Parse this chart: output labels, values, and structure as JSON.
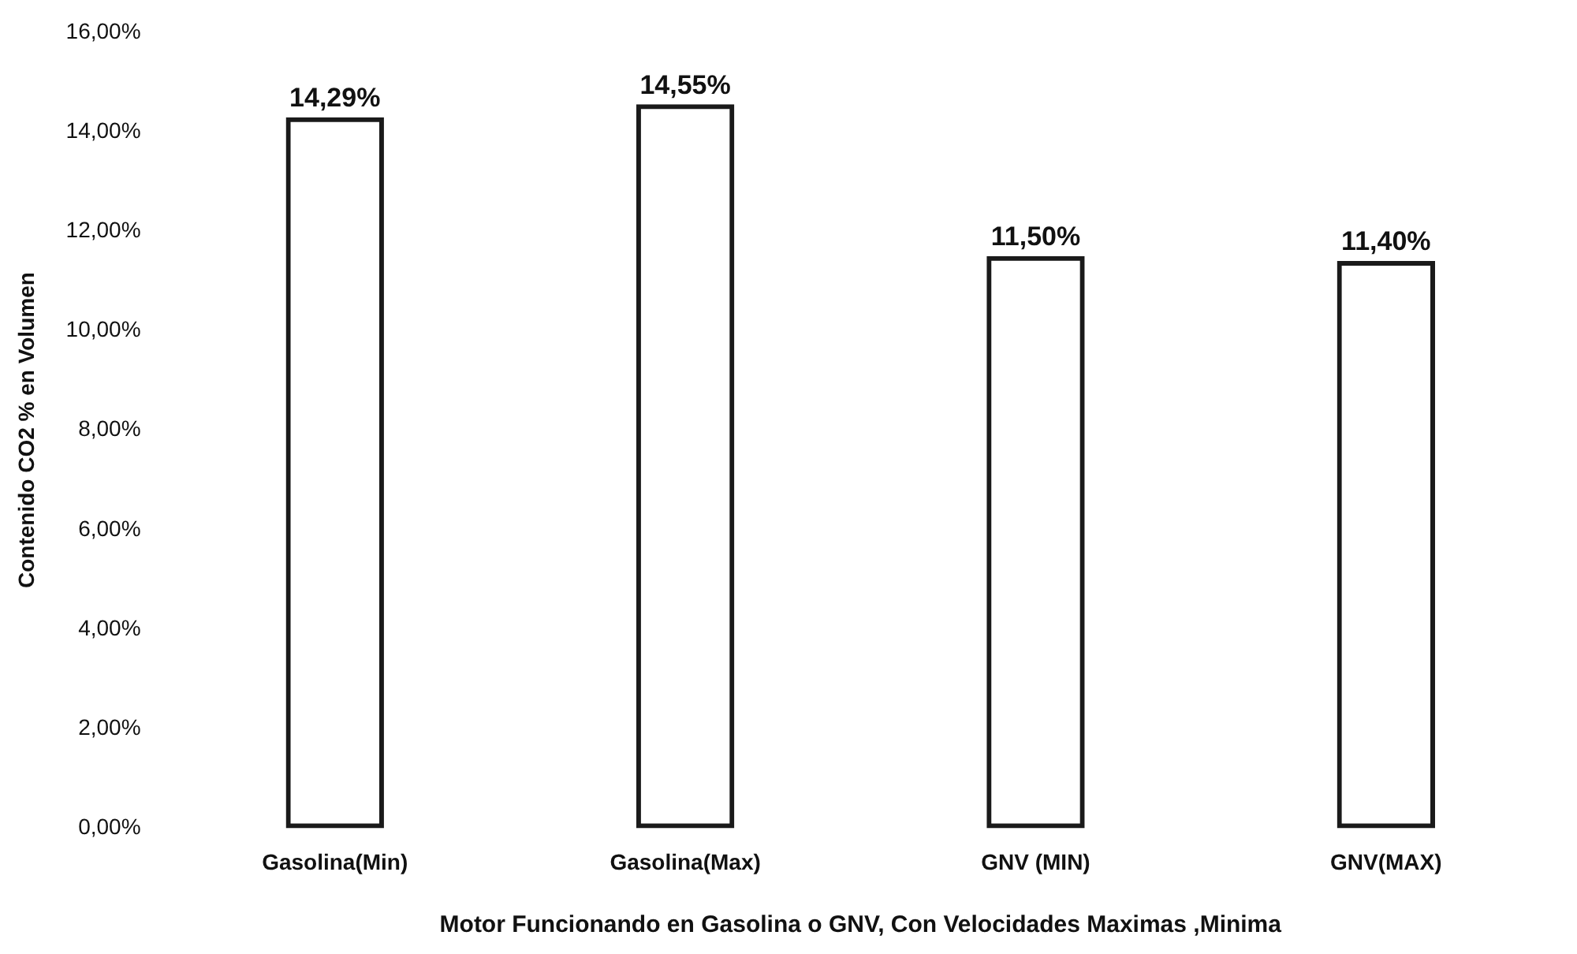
{
  "chart_data": {
    "type": "bar",
    "xlabel": "Motor Funcionando en Gasolina o GNV, Con Velocidades Maximas ,Minima",
    "ylabel": "Contenido CO2 % en Volumen",
    "categories": [
      "Gasolina(Min)",
      "Gasolina(Max)",
      "GNV (MIN)",
      "GNV(MAX)"
    ],
    "values": [
      14.29,
      14.55,
      11.5,
      11.4
    ],
    "value_labels": [
      "14,29%",
      "14,55%",
      "11,50%",
      "11,40%"
    ],
    "color": "#1a1a1a",
    "ylim": [
      0,
      16
    ],
    "yticks": [
      {
        "value": 0,
        "label": "0,00%"
      },
      {
        "value": 2,
        "label": "2,00%"
      },
      {
        "value": 4,
        "label": "4,00%"
      },
      {
        "value": 6,
        "label": "6,00%"
      },
      {
        "value": 8,
        "label": "8,00%"
      },
      {
        "value": 10,
        "label": "10,00%"
      },
      {
        "value": 12,
        "label": "12,00%"
      },
      {
        "value": 14,
        "label": "14,00%"
      },
      {
        "value": 16,
        "label": "16,00%"
      }
    ],
    "grid": false,
    "legend": false
  }
}
